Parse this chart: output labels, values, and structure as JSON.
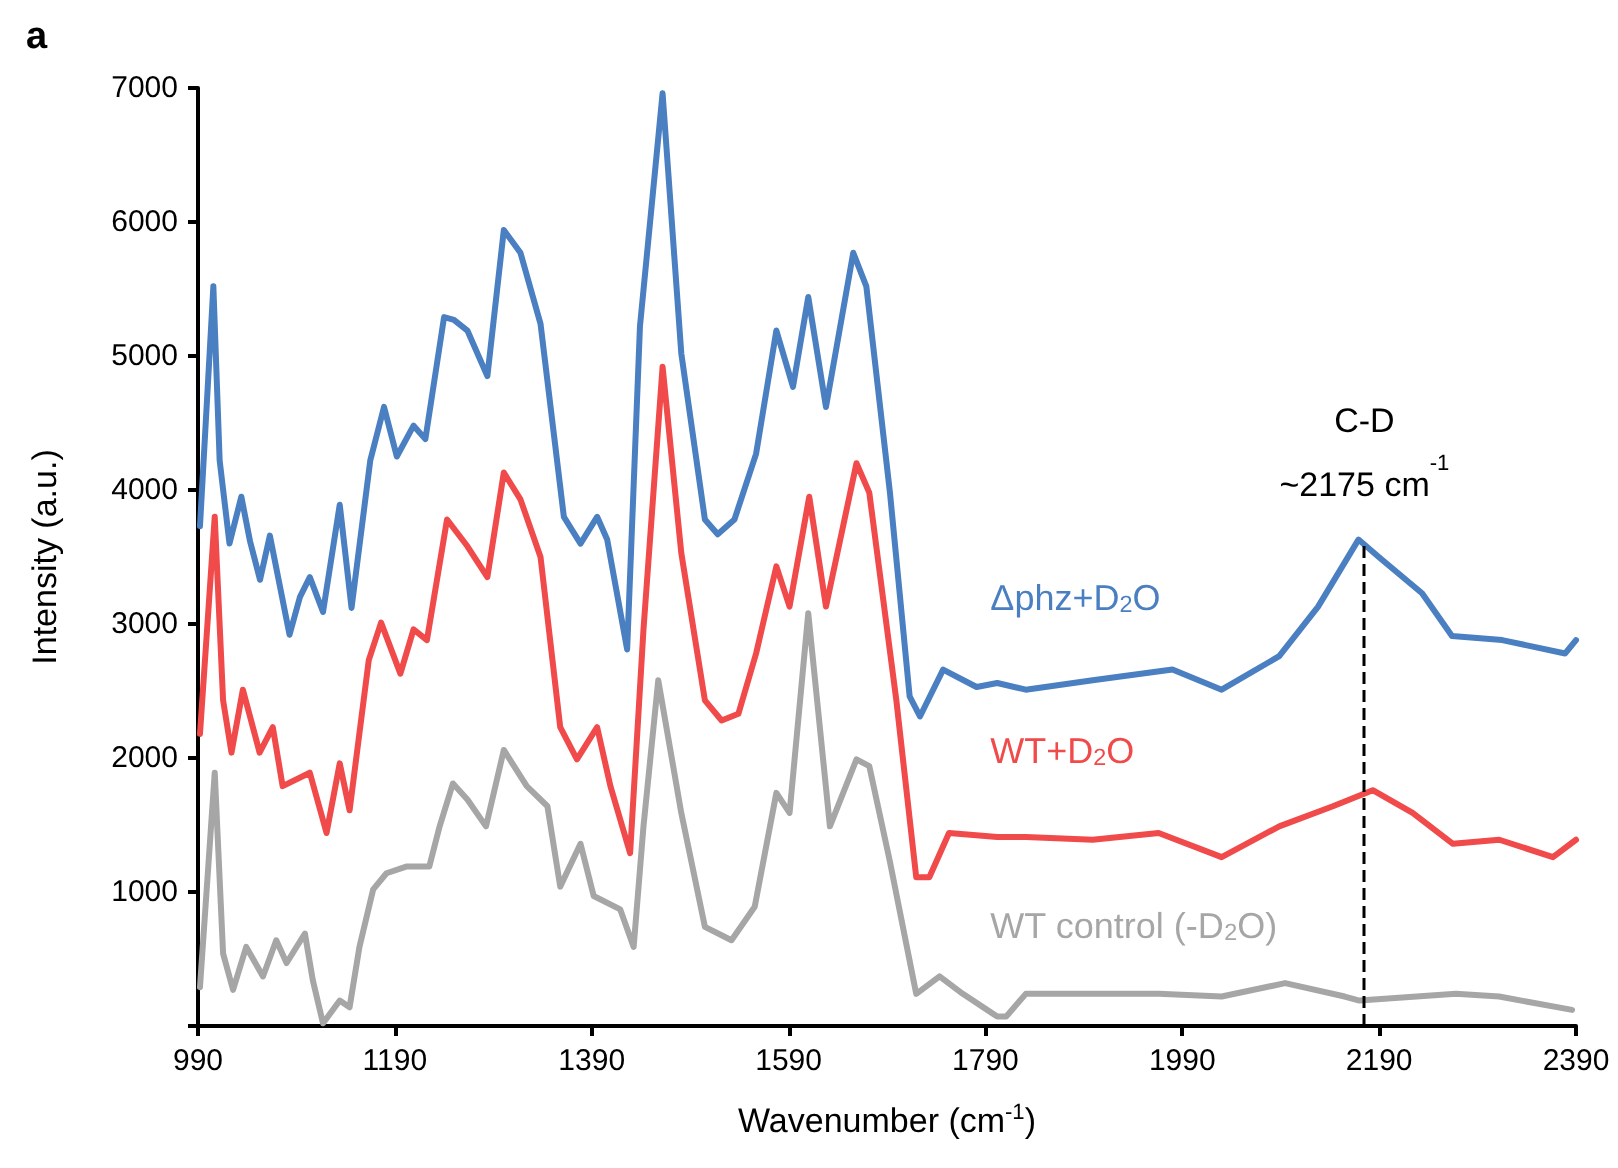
{
  "chart_data": {
    "type": "line",
    "title": "a",
    "xlabel": "Wavenumber (cm$^{-1}$)",
    "ylabel": "Intensity (a.u.)",
    "xlim": [
      990,
      2390
    ],
    "xticks": [
      990,
      1190,
      1390,
      1590,
      1790,
      1990,
      2190,
      2390
    ],
    "ylim": [
      0,
      7000
    ],
    "yticks": [
      {
        "value": 0,
        "label": null
      },
      1000,
      2000,
      3000,
      4000,
      5000,
      6000,
      7000
    ],
    "grid": false,
    "legend": false,
    "ref_lines": [
      {
        "axis": "x",
        "value": 2175,
        "label": "C-D\n~2175 cm$^{-1}$",
        "color": "#000000",
        "line_style": "dashed"
      }
    ],
    "series": [
      {
        "name": "Δphz+D$_{2}$O",
        "color": "#4a7fc1",
        "x": [
          992,
          1005.6,
          1012,
          1022,
          1034,
          1042.8,
          1053,
          1063,
          1083,
          1093.5,
          1103.6,
          1117,
          1134,
          1146,
          1165,
          1179,
          1192,
          1209,
          1221,
          1240,
          1250,
          1263.7,
          1284,
          1300.7,
          1317.6,
          1338,
          1361.7,
          1378.6,
          1395.5,
          1405.7,
          1426,
          1439,
          1462,
          1481,
          1505,
          1518,
          1535,
          1557,
          1577.6,
          1594.5,
          1610,
          1628,
          1655.7,
          1669,
          1693,
          1713,
          1723.5,
          1747,
          1781,
          1802,
          1831,
          1899,
          1980,
          2030,
          2088.5,
          2128,
          2169,
          2189.6,
          2233.6,
          2264,
          2315,
          2379,
          2390
        ],
        "values": [
          3730,
          5520,
          4220,
          3600,
          3950,
          3620,
          3330,
          3660,
          2920,
          3200,
          3350,
          3090,
          3890,
          3120,
          4220,
          4620,
          4250,
          4480,
          4380,
          5290,
          5270,
          5190,
          4850,
          5940,
          5770,
          5240,
          3800,
          3600,
          3800,
          3630,
          2810,
          5220,
          6960,
          5020,
          3780,
          3670,
          3780,
          4270,
          5190,
          4770,
          5440,
          4620,
          5770,
          5520,
          3980,
          2460,
          2310,
          2660,
          2530,
          2560,
          2510,
          2580,
          2660,
          2510,
          2760,
          3130,
          3630,
          3500,
          3230,
          2910,
          2880,
          2780,
          2880
        ]
      },
      {
        "name": "WT+D$_{2}$O",
        "color": "#f04a4a",
        "x": [
          992,
          1007,
          1015.5,
          1024,
          1035.6,
          1052.6,
          1066,
          1076,
          1103.6,
          1120.6,
          1134,
          1144,
          1163.5,
          1176,
          1195.6,
          1209,
          1222.6,
          1243,
          1263.7,
          1284,
          1300.7,
          1317.6,
          1338,
          1358,
          1375,
          1395.5,
          1409,
          1429,
          1442.6,
          1462,
          1481,
          1505,
          1522,
          1539,
          1557,
          1577.6,
          1591,
          1611,
          1628,
          1659,
          1672,
          1699.5,
          1719.7,
          1733,
          1753,
          1802,
          1831,
          1899,
          1966,
          2030,
          2088.5,
          2143,
          2183.5,
          2224,
          2265,
          2312,
          2366.6,
          2390
        ],
        "values": [
          2180,
          3800,
          2430,
          2040,
          2510,
          2040,
          2230,
          1790,
          1890,
          1440,
          1960,
          1610,
          2730,
          3010,
          2630,
          2960,
          2880,
          3780,
          3580,
          3350,
          4130,
          3930,
          3500,
          2230,
          1990,
          2230,
          1790,
          1290,
          2960,
          4920,
          3530,
          2430,
          2280,
          2330,
          2780,
          3430,
          3130,
          3950,
          3130,
          4200,
          3980,
          2430,
          1110,
          1110,
          1440,
          1410,
          1410,
          1390,
          1440,
          1260,
          1490,
          1640,
          1760,
          1590,
          1360,
          1390,
          1260,
          1390
        ]
      },
      {
        "name": "WT control (-D$_{2}$O)",
        "color": "#a6a6a6",
        "x": [
          992,
          1007,
          1015.5,
          1025.6,
          1039,
          1056,
          1069.5,
          1080,
          1098.6,
          1106.7,
          1117,
          1134,
          1144,
          1154,
          1168,
          1181.5,
          1201.5,
          1225,
          1235.5,
          1249,
          1263.7,
          1282.6,
          1300.7,
          1324,
          1345,
          1358,
          1378.6,
          1392,
          1419,
          1432.6,
          1442.6,
          1457.6,
          1481,
          1505,
          1532,
          1555.6,
          1577.6,
          1591,
          1610,
          1632,
          1659,
          1672,
          1692.6,
          1719.7,
          1743.4,
          1767,
          1802,
          1811,
          1831,
          1899,
          1966,
          2030,
          2094.5,
          2155,
          2170,
          2268,
          2312,
          2386
        ],
        "values": [
          290,
          1890,
          540,
          270,
          590,
          370,
          640,
          470,
          690,
          340,
          20,
          190,
          140,
          590,
          1020,
          1140,
          1190,
          1190,
          1490,
          1810,
          1690,
          1490,
          2060,
          1790,
          1640,
          1040,
          1360,
          970,
          870,
          590,
          1490,
          2580,
          1590,
          740,
          640,
          890,
          1740,
          1590,
          3080,
          1490,
          1990,
          1940,
          1240,
          240,
          370,
          240,
          70,
          70,
          240,
          240,
          240,
          220,
          320,
          220,
          190,
          240,
          220,
          120
        ]
      }
    ]
  }
}
